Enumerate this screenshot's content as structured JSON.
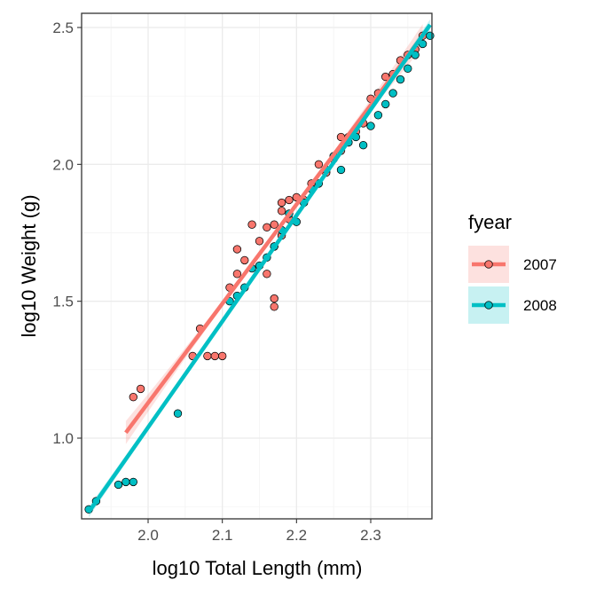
{
  "chart_data": {
    "type": "scatter",
    "xlabel": "log10 Total Length (mm)",
    "ylabel": "log10 Weight (g)",
    "xlim": [
      1.92,
      2.38
    ],
    "ylim": [
      0.7,
      2.55
    ],
    "xticks": [
      "2.0",
      "2.1",
      "2.2",
      "2.3"
    ],
    "yticks": [
      "1.0",
      "1.5",
      "2.0",
      "2.5"
    ],
    "grid": true,
    "legend": {
      "title": "fyear",
      "position": "right",
      "entries": [
        "2007",
        "2008"
      ]
    },
    "series": [
      {
        "name": "2007",
        "color": "#F8766D",
        "fit": {
          "x": [
            1.97,
            2.37
          ],
          "y": [
            1.02,
            2.47
          ]
        },
        "points": [
          {
            "x": 1.98,
            "y": 1.15
          },
          {
            "x": 1.99,
            "y": 1.18
          },
          {
            "x": 2.06,
            "y": 1.3
          },
          {
            "x": 2.07,
            "y": 1.4
          },
          {
            "x": 2.08,
            "y": 1.3
          },
          {
            "x": 2.09,
            "y": 1.3
          },
          {
            "x": 2.1,
            "y": 1.3
          },
          {
            "x": 2.11,
            "y": 1.55
          },
          {
            "x": 2.12,
            "y": 1.6
          },
          {
            "x": 2.12,
            "y": 1.69
          },
          {
            "x": 2.13,
            "y": 1.65
          },
          {
            "x": 2.14,
            "y": 1.78
          },
          {
            "x": 2.15,
            "y": 1.72
          },
          {
            "x": 2.16,
            "y": 1.77
          },
          {
            "x": 2.16,
            "y": 1.6
          },
          {
            "x": 2.17,
            "y": 1.48
          },
          {
            "x": 2.17,
            "y": 1.51
          },
          {
            "x": 2.17,
            "y": 1.7
          },
          {
            "x": 2.17,
            "y": 1.78
          },
          {
            "x": 2.18,
            "y": 1.74
          },
          {
            "x": 2.18,
            "y": 1.83
          },
          {
            "x": 2.18,
            "y": 1.86
          },
          {
            "x": 2.19,
            "y": 1.87
          },
          {
            "x": 2.19,
            "y": 1.8
          },
          {
            "x": 2.2,
            "y": 1.88
          },
          {
            "x": 2.21,
            "y": 1.87
          },
          {
            "x": 2.22,
            "y": 1.93
          },
          {
            "x": 2.23,
            "y": 2.0
          },
          {
            "x": 2.24,
            "y": 1.97
          },
          {
            "x": 2.25,
            "y": 2.02
          },
          {
            "x": 2.26,
            "y": 2.05
          },
          {
            "x": 2.26,
            "y": 2.1
          },
          {
            "x": 2.27,
            "y": 2.1
          },
          {
            "x": 2.28,
            "y": 2.12
          },
          {
            "x": 2.29,
            "y": 2.15
          },
          {
            "x": 2.3,
            "y": 2.24
          },
          {
            "x": 2.31,
            "y": 2.26
          },
          {
            "x": 2.32,
            "y": 2.32
          },
          {
            "x": 2.33,
            "y": 2.33
          },
          {
            "x": 2.34,
            "y": 2.38
          },
          {
            "x": 2.35,
            "y": 2.4
          },
          {
            "x": 2.36,
            "y": 2.42
          },
          {
            "x": 2.37,
            "y": 2.47
          }
        ]
      },
      {
        "name": "2008",
        "color": "#00BFC4",
        "fit": {
          "x": [
            1.92,
            2.38
          ],
          "y": [
            0.73,
            2.51
          ]
        },
        "points": [
          {
            "x": 1.92,
            "y": 0.74
          },
          {
            "x": 1.93,
            "y": 0.77
          },
          {
            "x": 1.96,
            "y": 0.83
          },
          {
            "x": 1.97,
            "y": 0.84
          },
          {
            "x": 1.98,
            "y": 0.84
          },
          {
            "x": 2.04,
            "y": 1.09
          },
          {
            "x": 2.11,
            "y": 1.5
          },
          {
            "x": 2.12,
            "y": 1.52
          },
          {
            "x": 2.13,
            "y": 1.55
          },
          {
            "x": 2.14,
            "y": 1.62
          },
          {
            "x": 2.15,
            "y": 1.63
          },
          {
            "x": 2.16,
            "y": 1.66
          },
          {
            "x": 2.17,
            "y": 1.7
          },
          {
            "x": 2.18,
            "y": 1.76
          },
          {
            "x": 2.19,
            "y": 1.82
          },
          {
            "x": 2.2,
            "y": 1.79
          },
          {
            "x": 2.21,
            "y": 1.86
          },
          {
            "x": 2.22,
            "y": 1.91
          },
          {
            "x": 2.23,
            "y": 1.93
          },
          {
            "x": 2.24,
            "y": 1.98
          },
          {
            "x": 2.25,
            "y": 2.03
          },
          {
            "x": 2.26,
            "y": 1.98
          },
          {
            "x": 2.27,
            "y": 2.08
          },
          {
            "x": 2.28,
            "y": 2.1
          },
          {
            "x": 2.29,
            "y": 2.07
          },
          {
            "x": 2.3,
            "y": 2.14
          },
          {
            "x": 2.31,
            "y": 2.18
          },
          {
            "x": 2.32,
            "y": 2.22
          },
          {
            "x": 2.33,
            "y": 2.26
          },
          {
            "x": 2.34,
            "y": 2.31
          },
          {
            "x": 2.35,
            "y": 2.35
          },
          {
            "x": 2.36,
            "y": 2.4
          },
          {
            "x": 2.37,
            "y": 2.44
          },
          {
            "x": 2.38,
            "y": 2.47
          }
        ]
      }
    ]
  }
}
